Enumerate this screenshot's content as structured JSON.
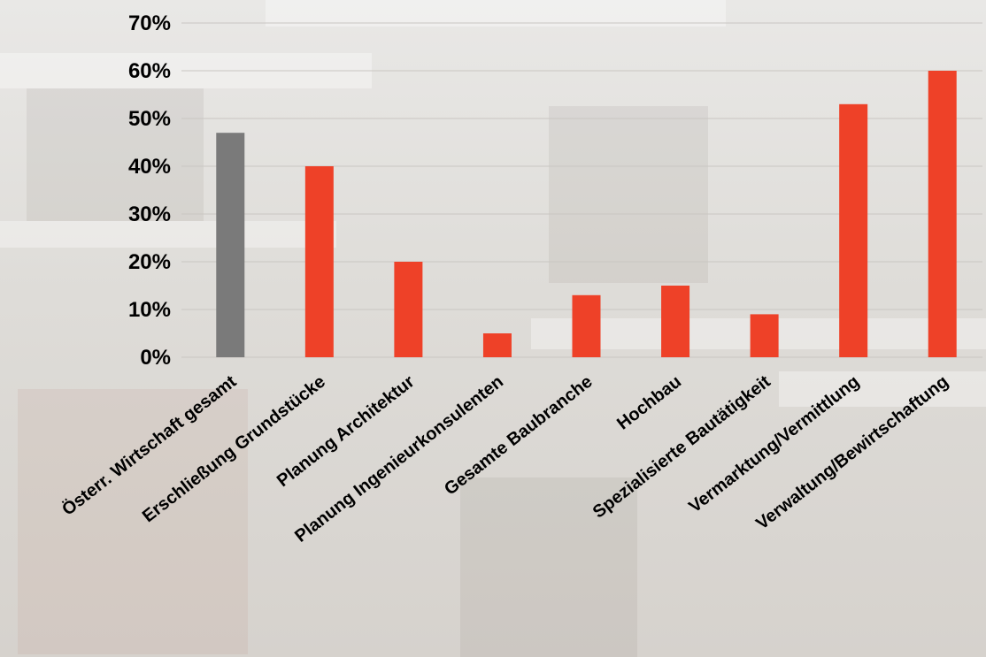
{
  "chart_data": {
    "type": "bar",
    "categories": [
      "Österr. Wirtschaft gesamt",
      "Erschließung Grundstücke",
      "Planung Architektur",
      "Planung Ingenieurkonsulenten",
      "Gesamte Baubranche",
      "Hochbau",
      "Spezialisierte Bautätigkeit",
      "Vermarktung/Vermittlung",
      "Verwaltung/Bewirtschaftung"
    ],
    "values": [
      47,
      40,
      20,
      5,
      13,
      15,
      9,
      53,
      60
    ],
    "bar_colors": [
      "#7a7a7a",
      "#ee4128",
      "#ee4128",
      "#ee4128",
      "#ee4128",
      "#ee4128",
      "#ee4128",
      "#ee4128",
      "#ee4128"
    ],
    "yticks": [
      "0%",
      "10%",
      "20%",
      "30%",
      "40%",
      "50%",
      "60%",
      "70%"
    ],
    "ylim": [
      0,
      70
    ],
    "grid": true,
    "title": "",
    "xlabel": "",
    "ylabel": ""
  }
}
